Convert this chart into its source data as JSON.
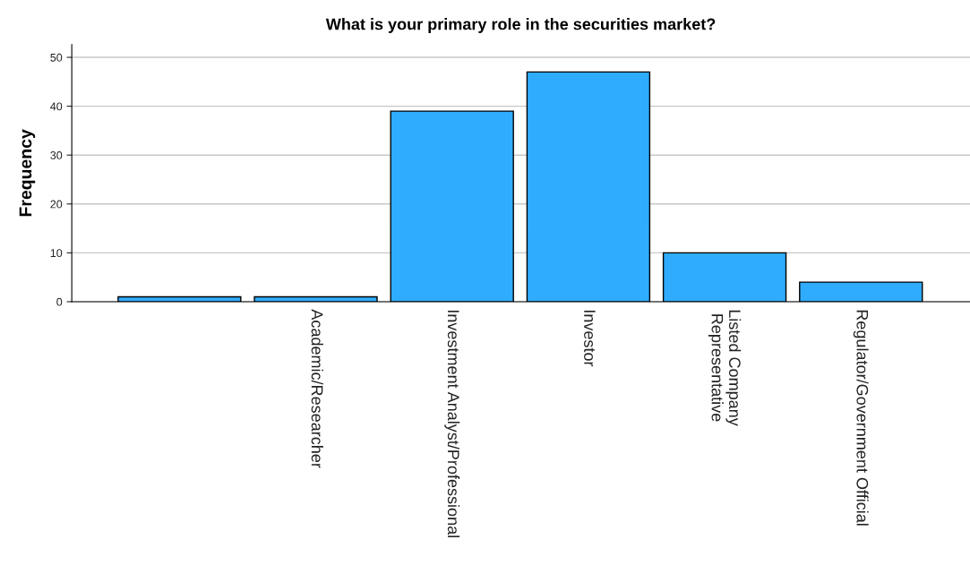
{
  "chart_data": {
    "type": "bar",
    "title": "What is your primary role in the securities market?",
    "ylabel": "Frequency",
    "categories": [
      null,
      "Academic/Researcher",
      "Investment Analyst/Professional",
      "Investor",
      "Listed Company\nRepresentative",
      "Regulator/Government Official"
    ],
    "values": [
      1,
      1,
      39,
      47,
      10,
      4
    ],
    "color": "#30acfe",
    "ylim": [
      0,
      52.6
    ],
    "yticks": [
      0,
      10,
      20,
      30,
      40,
      50
    ],
    "grid": "y"
  }
}
